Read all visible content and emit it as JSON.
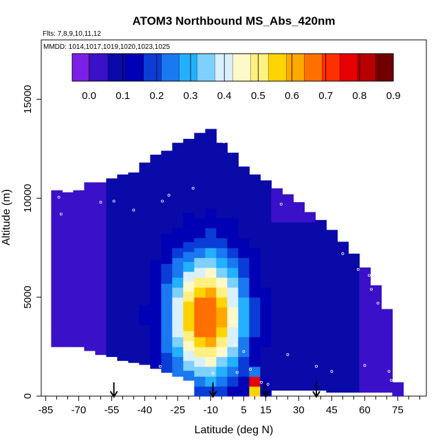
{
  "chart_data": {
    "type": "heatmap",
    "title": "ATOM3 Northbound MS_Abs_420nm",
    "flights_label": "Flts: 7,8,9,10,11,12",
    "dates_label": "MMDD: 1014,1017,1019,1020,1023,1025",
    "xlabel": "Latitude (deg N)",
    "ylabel": "Altitude (m)",
    "xlim": [
      -87,
      88
    ],
    "ylim": [
      0,
      18000
    ],
    "x_ticks": [
      -85,
      -70,
      -55,
      -40,
      -25,
      -10,
      5,
      15,
      30,
      45,
      60,
      75
    ],
    "x_tick_labels": [
      "-85",
      "-70",
      "-55",
      "-40",
      "-25",
      "-10",
      "5",
      "15",
      "30",
      "45",
      "60",
      "75"
    ],
    "x_minor_ticks": [
      -80,
      -75,
      -65,
      -60,
      -50,
      -45,
      -35,
      -30,
      -20,
      -15,
      -5,
      0,
      10,
      20,
      25,
      35,
      40,
      50,
      55,
      65,
      70,
      80,
      85
    ],
    "y_ticks": [
      0,
      5000,
      10000,
      15000
    ],
    "y_tick_labels": [
      "0",
      "5000",
      "10000",
      "15000"
    ],
    "colorbar": {
      "min": -0.05,
      "max": 0.9,
      "ticks": [
        0.0,
        0.1,
        0.2,
        0.3,
        0.4,
        0.5,
        0.6,
        0.7,
        0.8,
        0.9
      ],
      "tick_labels": [
        "0.0",
        "0.1",
        "0.2",
        "0.3",
        "0.4",
        "0.5",
        "0.6",
        "0.7",
        "0.8",
        "0.9"
      ],
      "colors": [
        "#7b20e6",
        "#3a10c8",
        "#0a0aa8",
        "#0000b4",
        "#0a3dd6",
        "#1a78f0",
        "#22b0ff",
        "#7ed0ff",
        "#d8f0ff",
        "#fff8c8",
        "#fff080",
        "#ffd400",
        "#ffa800",
        "#ff7000",
        "#ff3000",
        "#e60000",
        "#b80000",
        "#700000"
      ]
    },
    "field": {
      "x_bins": [
        -80,
        -75,
        -70,
        -65,
        -60,
        -55,
        -50,
        -45,
        -40,
        -35,
        -30,
        -25,
        -20,
        -15,
        -10,
        -5,
        0,
        5,
        10,
        15,
        20,
        25,
        30,
        35,
        40,
        45,
        50,
        55,
        60,
        65,
        70,
        75
      ],
      "bottom_alt": [
        2500,
        2500,
        2500,
        2300,
        2100,
        2000,
        1800,
        1700,
        1600,
        1400,
        1200,
        1000,
        800,
        0,
        0,
        0,
        0,
        0,
        0,
        0,
        300,
        300,
        300,
        300,
        300,
        200,
        200,
        200,
        200,
        200,
        200,
        0
      ],
      "top_alt": [
        10400,
        10300,
        10400,
        10800,
        10800,
        11000,
        11200,
        11300,
        11800,
        12200,
        12400,
        12800,
        13000,
        13300,
        13500,
        12800,
        12300,
        11600,
        11200,
        10900,
        10500,
        10200,
        9800,
        9300,
        8900,
        8400,
        7800,
        7200,
        6500,
        5600,
        4400,
        700
      ],
      "plume_center_lat": -12,
      "plume_center_alt": 4000,
      "plume_peak": 0.62,
      "surface_hotspot": {
        "lat": 10,
        "alt": 600,
        "value": 0.8
      }
    },
    "sample_points": [
      [
        -79,
        10050
      ],
      [
        -78,
        9200
      ],
      [
        -60,
        9800
      ],
      [
        -54,
        9850
      ],
      [
        -45,
        9400
      ],
      [
        -32,
        9850
      ],
      [
        -29,
        10150
      ],
      [
        -18,
        10500
      ],
      [
        -5,
        13200
      ],
      [
        -4,
        12850
      ],
      [
        22,
        9700
      ],
      [
        34,
        9500
      ],
      [
        38,
        9400
      ],
      [
        47,
        9050
      ],
      [
        50,
        7200
      ],
      [
        57,
        6400
      ],
      [
        62,
        6100
      ],
      [
        63,
        5400
      ],
      [
        66,
        4700
      ],
      [
        -1,
        3800
      ],
      [
        -3,
        2100
      ],
      [
        1,
        2600
      ],
      [
        5,
        2250
      ],
      [
        8,
        1350
      ],
      [
        25,
        2100
      ],
      [
        38,
        1500
      ],
      [
        45,
        1250
      ],
      [
        60,
        1550
      ],
      [
        71,
        1250
      ],
      [
        72,
        800
      ],
      [
        -62,
        1450
      ],
      [
        -33,
        1500
      ],
      [
        -24,
        800
      ],
      [
        -9,
        1150
      ],
      [
        16,
        600
      ],
      [
        2,
        1200
      ],
      [
        13,
        700
      ]
    ],
    "arrow_latitudes": [
      -54,
      -9,
      15,
      38
    ]
  }
}
